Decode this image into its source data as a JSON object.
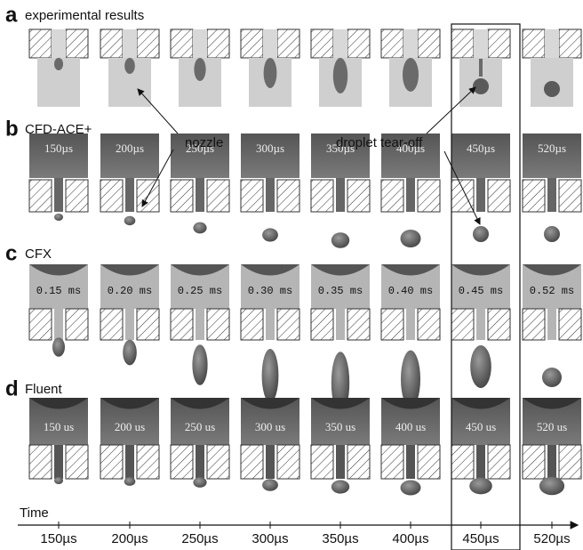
{
  "panels": [
    {
      "letter": "a",
      "title": "experimental results"
    },
    {
      "letter": "b",
      "title": "CFD-ACE+",
      "frame_labels": [
        "150µs",
        "200µs",
        "250µs",
        "300µs",
        "350µs",
        "400µs",
        "450µs",
        "520µs"
      ]
    },
    {
      "letter": "c",
      "title": "CFX",
      "frame_labels": [
        "0.15 ms",
        "0.20 ms",
        "0.25 ms",
        "0.30 ms",
        "0.35 ms",
        "0.40 ms",
        "0.45 ms",
        "0.52 ms"
      ]
    },
    {
      "letter": "d",
      "title": "Fluent",
      "frame_labels": [
        "150 us",
        "200 us",
        "250 us",
        "300 us",
        "350 us",
        "400 us",
        "450 us",
        "520 us"
      ]
    }
  ],
  "annotations": {
    "nozzle": "nozzle",
    "tear_off": "droplet tear-off"
  },
  "time_axis": {
    "label": "Time",
    "ticks": [
      "150µs",
      "200µs",
      "250µs",
      "300µs",
      "350µs",
      "400µs",
      "450µs",
      "520µs"
    ]
  }
}
